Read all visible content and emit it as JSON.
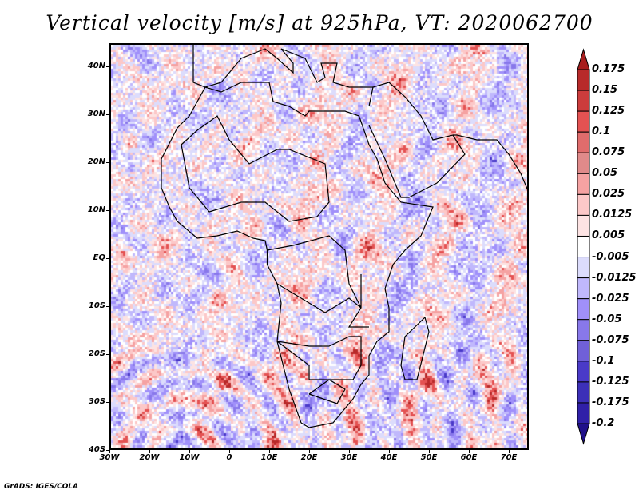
{
  "title": "Vertical velocity [m/s] at 925hPa, VT: 2020062700",
  "credit": "GrADS: IGES/COLA",
  "axes": {
    "lat_labels": [
      "40N",
      "30N",
      "20N",
      "10N",
      "EQ",
      "10S",
      "20S",
      "30S",
      "40S"
    ],
    "lon_labels": [
      "30W",
      "20W",
      "10W",
      "0",
      "10E",
      "20E",
      "30E",
      "40E",
      "50E",
      "60E",
      "70E"
    ]
  },
  "colorbar": {
    "labels": [
      "0.175",
      "0.15",
      "0.125",
      "0.1",
      "0.075",
      "0.05",
      "0.025",
      "0.0125",
      "0.005",
      "-0.005",
      "-0.0125",
      "-0.025",
      "-0.05",
      "-0.075",
      "-0.1",
      "-0.125",
      "-0.175",
      "-0.2"
    ],
    "colors": [
      "#a81e1e",
      "#b82a2a",
      "#cc3c3c",
      "#e45252",
      "#e06c6c",
      "#e08a8a",
      "#f5a2a2",
      "#fcc8c8",
      "#fde3e3",
      "#ffffff",
      "#dcdcfc",
      "#c0b8fc",
      "#a090fa",
      "#8878ea",
      "#7060d8",
      "#4a3ac8",
      "#3c30b8",
      "#3020a8",
      "#20108a"
    ]
  }
}
